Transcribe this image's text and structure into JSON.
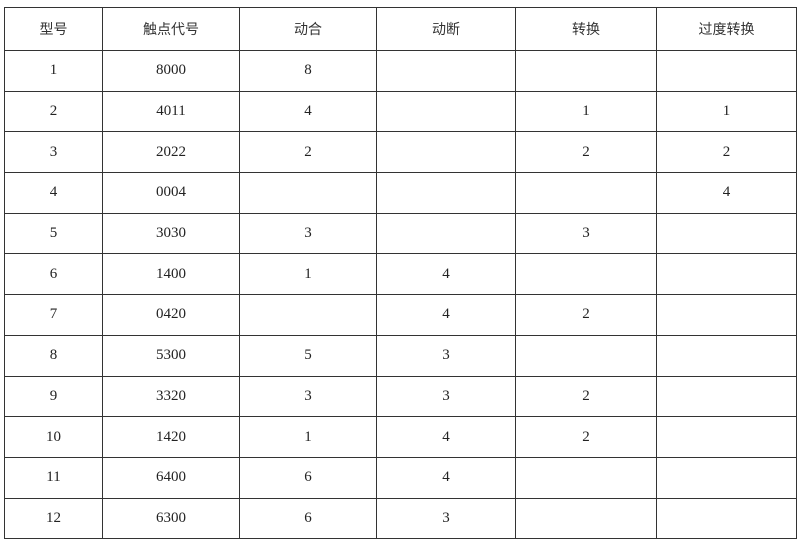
{
  "headers": [
    "型号",
    "触点代号",
    "动合",
    "动断",
    "转换",
    "过度转换"
  ],
  "rows": [
    [
      "1",
      "8000",
      "8",
      "",
      "",
      ""
    ],
    [
      "2",
      "4011",
      "4",
      "",
      "1",
      "1"
    ],
    [
      "3",
      "2022",
      "2",
      "",
      "2",
      "2"
    ],
    [
      "4",
      "0004",
      "",
      "",
      "",
      "4"
    ],
    [
      "5",
      "3030",
      "3",
      "",
      "3",
      ""
    ],
    [
      "6",
      "1400",
      "1",
      "4",
      "",
      ""
    ],
    [
      "7",
      "0420",
      "",
      "4",
      "2",
      ""
    ],
    [
      "8",
      "5300",
      "5",
      "3",
      "",
      ""
    ],
    [
      "9",
      "3320",
      "3",
      "3",
      "2",
      ""
    ],
    [
      "10",
      "1420",
      "1",
      "4",
      "2",
      ""
    ],
    [
      "11",
      "6400",
      "6",
      "4",
      "",
      ""
    ],
    [
      "12",
      "6300",
      "6",
      "3",
      "",
      ""
    ]
  ]
}
